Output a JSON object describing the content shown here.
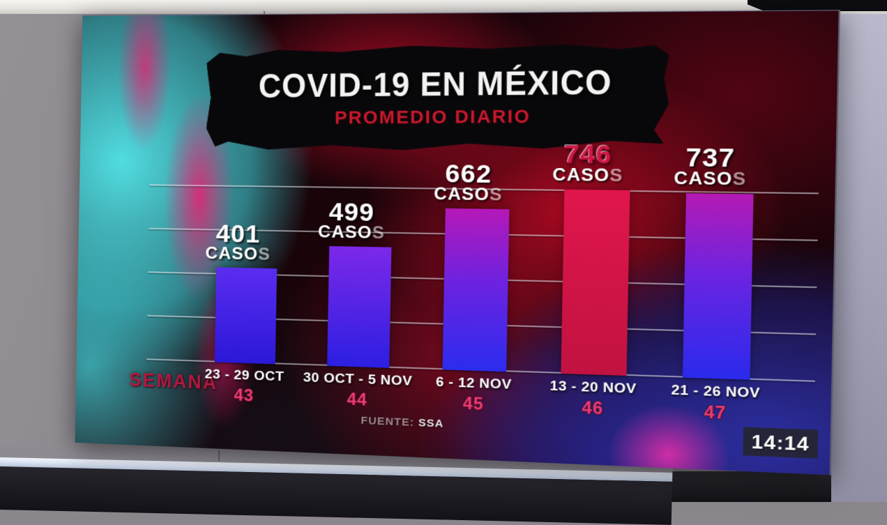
{
  "scene": {
    "clock": "14:14"
  },
  "screen": {
    "title": "COVID-19 EN MÉXICO",
    "subtitle": "PROMEDIO DIARIO",
    "source_label": "FUENTE:",
    "source_value": "SSA"
  },
  "chart_data": {
    "type": "bar",
    "title": "COVID-19 EN MÉXICO",
    "subtitle": "PROMEDIO DIARIO",
    "unit_label": "CASOS",
    "categories": [
      "23 - 29 OCT",
      "30 OCT - 5 NOV",
      "6 - 12 NOV",
      "13 - 20 NOV",
      "21 - 26 NOV"
    ],
    "week_numbers": [
      "43",
      "44",
      "45",
      "46",
      "47"
    ],
    "values": [
      401,
      499,
      662,
      746,
      737
    ],
    "xlabel": "SEMANA",
    "source": "FUENTE: SSA",
    "ylim": [
      0,
      850
    ],
    "grid": true,
    "gridline_count": 5,
    "legend": "none",
    "highlight_index": 3,
    "bar_colors": [
      {
        "top": "#5b2cf0",
        "bottom": "#2a18d8"
      },
      {
        "top": "#7c28e8",
        "bottom": "#2c1fe2"
      },
      {
        "top": "#b518b8",
        "mid": "#6d22e0",
        "bottom": "#2b2cee"
      },
      {
        "top": "#e0164d",
        "bottom": "#c11240"
      },
      {
        "top": "#b41ab4",
        "mid": "#6a24e2",
        "bottom": "#2a2aec"
      }
    ],
    "value_color_default": "#ffffff",
    "value_color_highlight": "#cf1746",
    "week_number_color": "#e63e72",
    "category_color": "#ffffff",
    "subtitle_color": "#c5192e",
    "xlabel_color": "#b01940"
  }
}
